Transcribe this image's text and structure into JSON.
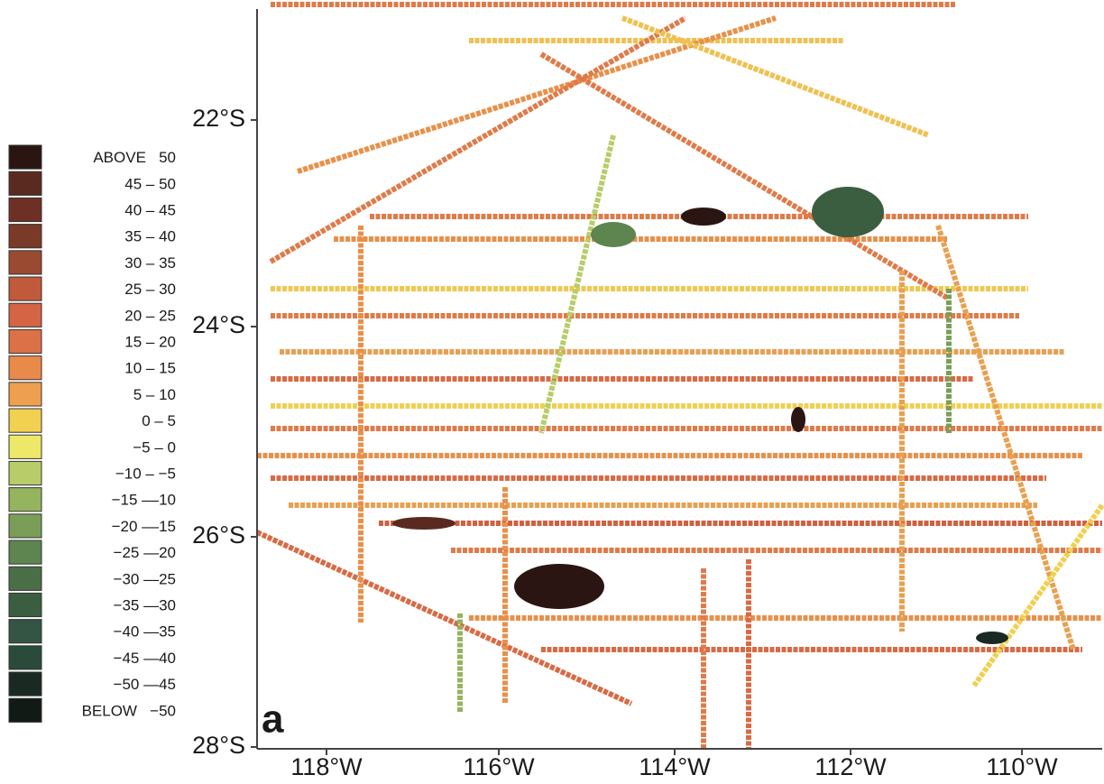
{
  "map": {
    "panel_label": "a",
    "lat_labels": [
      "22°S",
      "24°S",
      "26°S",
      "28°S"
    ],
    "lon_labels": [
      "118°W",
      "116°W",
      "114°W",
      "112°W",
      "110°W"
    ]
  },
  "legend": {
    "items": [
      {
        "label": "ABOVE   50",
        "color": "#2a1512"
      },
      {
        "label": "45 – 50",
        "color": "#5a2a20"
      },
      {
        "label": "40 – 45",
        "color": "#6e3024"
      },
      {
        "label": "35 – 40",
        "color": "#7a3a28"
      },
      {
        "label": "30 – 35",
        "color": "#9a4a30"
      },
      {
        "label": "25 – 30",
        "color": "#c05a3a"
      },
      {
        "label": "20 – 25",
        "color": "#d46444"
      },
      {
        "label": "15 – 20",
        "color": "#dc7046"
      },
      {
        "label": "10 – 15",
        "color": "#e88a4a"
      },
      {
        "label": "5 – 10",
        "color": "#eea050"
      },
      {
        "label": "0 – 5",
        "color": "#f2d050"
      },
      {
        "label": "−5 – 0",
        "color": "#eee868"
      },
      {
        "label": "−10 – −5",
        "color": "#b8cc6a"
      },
      {
        "label": "−15 ––10",
        "color": "#94b45e"
      },
      {
        "label": "−20 ––15",
        "color": "#7a9e58"
      },
      {
        "label": "−25 —20",
        "color": "#5e8450"
      },
      {
        "label": "−30 —25",
        "color": "#4a6e46"
      },
      {
        "label": "−35 —30",
        "color": "#3c5e40"
      },
      {
        "label": "−40 —35",
        "color": "#345444"
      },
      {
        "label": "−45 —40",
        "color": "#2a4a3c"
      },
      {
        "label": "−50 —45",
        "color": "#1a2a22"
      },
      {
        "label": "BELOW   −50",
        "color": "#121a16"
      }
    ]
  }
}
